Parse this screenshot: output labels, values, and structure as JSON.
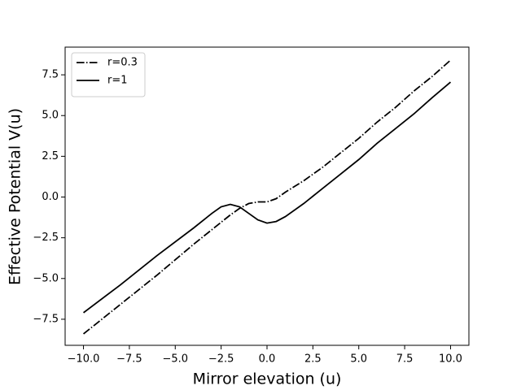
{
  "chart_data": {
    "type": "line",
    "xlabel": "Mirror elevation  (u)",
    "ylabel": "Effective Potential  V(u)",
    "x": [
      -10,
      -8,
      -6,
      -4,
      -3,
      -2.5,
      -2,
      -1.5,
      -1,
      -0.5,
      0,
      0.5,
      1,
      2,
      3,
      4,
      5,
      6,
      7,
      8,
      9,
      10
    ],
    "series": [
      {
        "name": "r=0.3",
        "color": "#000000",
        "linestyle": "dashdot",
        "values": [
          -8.4,
          -6.6,
          -4.8,
          -2.9,
          -2.0,
          -1.55,
          -1.1,
          -0.7,
          -0.4,
          -0.3,
          -0.3,
          -0.1,
          0.3,
          1.0,
          1.8,
          2.7,
          3.6,
          4.6,
          5.5,
          6.5,
          7.4,
          8.4
        ]
      },
      {
        "name": "r=1",
        "color": "#000000",
        "linestyle": "solid",
        "values": [
          -7.1,
          -5.4,
          -3.6,
          -1.9,
          -1.0,
          -0.6,
          -0.45,
          -0.6,
          -1.0,
          -1.4,
          -1.6,
          -1.5,
          -1.2,
          -0.4,
          0.5,
          1.4,
          2.3,
          3.3,
          4.2,
          5.1,
          6.1,
          7.05
        ]
      }
    ],
    "xlim": [
      -11,
      11
    ],
    "ylim": [
      -9.1,
      9.2
    ],
    "xticks": [
      {
        "value": -10,
        "label": "−10.0"
      },
      {
        "value": -7.5,
        "label": "−7.5"
      },
      {
        "value": -5,
        "label": "−5.0"
      },
      {
        "value": -2.5,
        "label": "−2.5"
      },
      {
        "value": 0,
        "label": "0.0"
      },
      2.5,
      {
        "value": 5,
        "label": "5.0"
      },
      7.5,
      {
        "value": 10,
        "label": "10.0"
      }
    ],
    "yticks": [
      {
        "value": -7.5,
        "label": "−7.5"
      },
      {
        "value": -5,
        "label": "−5.0"
      },
      {
        "value": -2.5,
        "label": "−2.5"
      },
      {
        "value": 0,
        "label": "0.0"
      },
      2.5,
      {
        "value": 5,
        "label": "5.0"
      },
      7.5
    ],
    "legend": "upper left",
    "grid": false
  }
}
